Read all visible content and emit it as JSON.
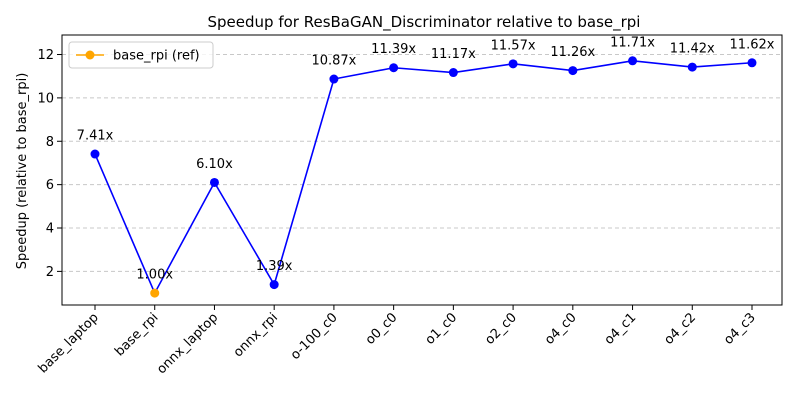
{
  "chart_data": {
    "type": "line",
    "title": "Speedup for ResBaGAN_Discriminator relative to base_rpi",
    "xlabel": "",
    "ylabel": "Speedup (relative to base_rpi)",
    "categories": [
      "base_laptop",
      "base_rpi",
      "onnx_laptop",
      "onnx_rpi",
      "o-100_c0",
      "o0_c0",
      "o1_c0",
      "o2_c0",
      "o4_c0",
      "o4_c1",
      "o4_c2",
      "o4_c3"
    ],
    "values": [
      7.41,
      1.0,
      6.1,
      1.39,
      10.87,
      11.39,
      11.17,
      11.57,
      11.26,
      11.71,
      11.42,
      11.62
    ],
    "data_labels": [
      "7.41x",
      "1.00x",
      "6.10x",
      "1.39x",
      "10.87x",
      "11.39x",
      "11.17x",
      "11.57x",
      "11.26x",
      "11.71x",
      "11.42x",
      "11.62x"
    ],
    "reference_index": 1,
    "ylim": [
      0.45,
      12.9
    ],
    "yticks": [
      2,
      4,
      6,
      8,
      10,
      12
    ],
    "ytick_labels": [
      "2",
      "4",
      "6",
      "8",
      "10",
      "12"
    ],
    "grid": "horizontal dashed",
    "legend": {
      "entries": [
        "base_rpi (ref)"
      ],
      "placement": "top-left"
    },
    "colors": {
      "line": "#0000ff",
      "reference": "#ffa500",
      "grid": "#c8c8c8"
    }
  }
}
